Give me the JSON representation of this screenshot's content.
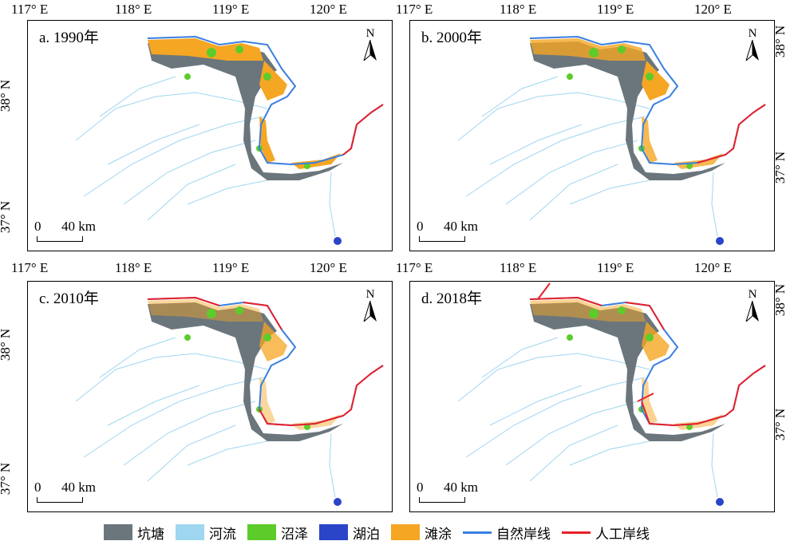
{
  "panels": [
    {
      "label": "a. 1990年",
      "north": "N",
      "scale_zero": "0",
      "scale_label": "40 km"
    },
    {
      "label": "b. 2000年",
      "north": "N",
      "scale_zero": "0",
      "scale_label": "40 km"
    },
    {
      "label": "c. 2010年",
      "north": "N",
      "scale_zero": "0",
      "scale_label": "40 km"
    },
    {
      "label": "d. 2018年",
      "north": "N",
      "scale_zero": "0",
      "scale_label": "40 km"
    }
  ],
  "axes": {
    "lon_ticks": [
      "117° E",
      "118° E",
      "119° E",
      "120° E"
    ],
    "lat_ticks": [
      "38° N",
      "37° N"
    ]
  },
  "legend": [
    {
      "name": "坑塘",
      "color": "#6b767c",
      "kind": "box"
    },
    {
      "name": "河流",
      "color": "#9fd6f0",
      "kind": "box"
    },
    {
      "name": "沼泽",
      "color": "#5ccc2a",
      "kind": "box"
    },
    {
      "name": "湖泊",
      "color": "#2a45c8",
      "kind": "box"
    },
    {
      "name": "滩涂",
      "color": "#f5a623",
      "kind": "box"
    },
    {
      "name": "自然岸线",
      "color": "#3a7fe0",
      "kind": "line"
    },
    {
      "name": "人工岸线",
      "color": "#e8202a",
      "kind": "line"
    }
  ]
}
